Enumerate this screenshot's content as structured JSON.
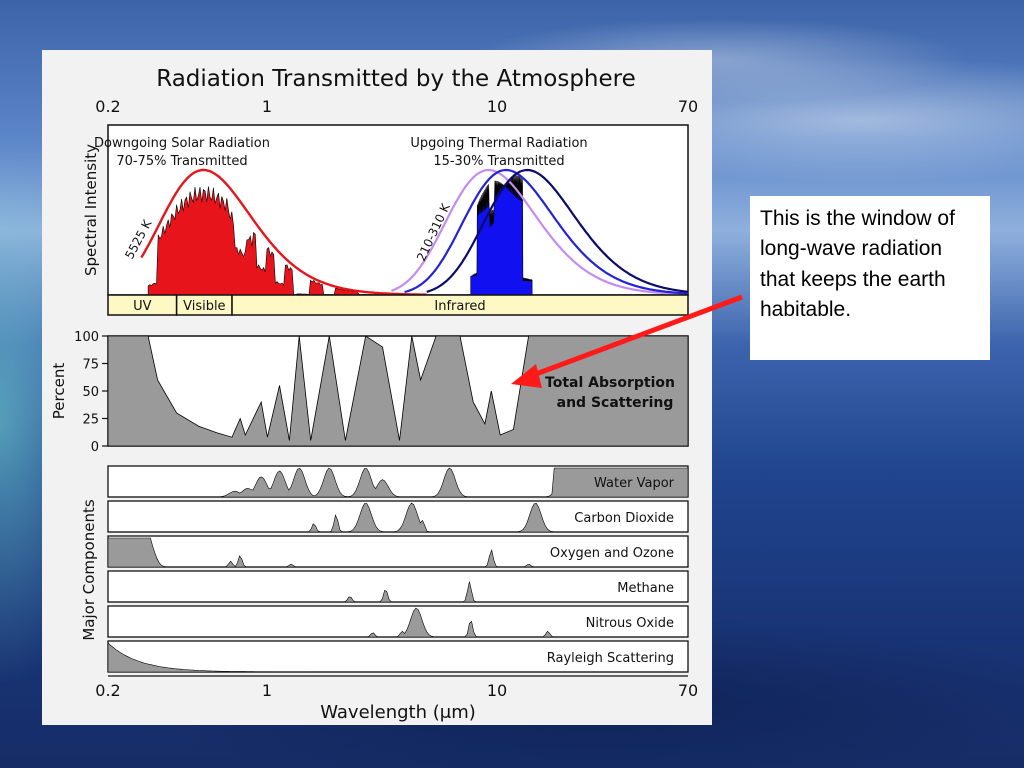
{
  "chart_data": {
    "type": "area",
    "title": "Radiation Transmitted by the Atmosphere",
    "xlabel": "Wavelength (μm)",
    "x_scale": "log",
    "xlim": [
      0.2,
      70
    ],
    "x_ticks": [
      "0.2",
      "1",
      "10",
      "70"
    ],
    "spectral_panel": {
      "ylabel": "Spectral Intensity",
      "solar_label_line1": "Downgoing Solar Radiation",
      "solar_label_line2": "70-75% Transmitted",
      "thermal_label_line1": "Upgoing Thermal Radiation",
      "thermal_label_line2": "15-30% Transmitted",
      "solar_temp_label": "5525 K",
      "thermal_temp_label": "210-310 K",
      "solar_color": "#e8141b",
      "thermal_color": "#1010f0",
      "thermal_curve_colors": [
        "#c58cf0",
        "#2323d8",
        "#0c0c6a"
      ],
      "bands": [
        {
          "label": "UV",
          "from": 0.2,
          "to": 0.4
        },
        {
          "label": "Visible",
          "from": 0.4,
          "to": 0.7
        },
        {
          "label": "Infrared",
          "from": 0.7,
          "to": 70
        }
      ],
      "band_color": "#fdf8c4"
    },
    "absorption_panel": {
      "ylabel": "Percent",
      "ylim": [
        0,
        100
      ],
      "y_ticks": [
        "100",
        "75",
        "50",
        "25",
        "0"
      ],
      "annotation_line1": "Total Absorption",
      "annotation_line2": "and Scattering",
      "fill_color": "#9a9a9a",
      "series": [
        {
          "x": 0.2,
          "y": 100
        },
        {
          "x": 0.3,
          "y": 100
        },
        {
          "x": 0.33,
          "y": 60
        },
        {
          "x": 0.4,
          "y": 30
        },
        {
          "x": 0.5,
          "y": 18
        },
        {
          "x": 0.6,
          "y": 12
        },
        {
          "x": 0.7,
          "y": 8
        },
        {
          "x": 0.76,
          "y": 25
        },
        {
          "x": 0.8,
          "y": 10
        },
        {
          "x": 0.94,
          "y": 40
        },
        {
          "x": 1.0,
          "y": 8
        },
        {
          "x": 1.13,
          "y": 55
        },
        {
          "x": 1.25,
          "y": 5
        },
        {
          "x": 1.38,
          "y": 100
        },
        {
          "x": 1.55,
          "y": 5
        },
        {
          "x": 1.87,
          "y": 100
        },
        {
          "x": 2.2,
          "y": 5
        },
        {
          "x": 2.7,
          "y": 100
        },
        {
          "x": 3.2,
          "y": 90
        },
        {
          "x": 3.8,
          "y": 5
        },
        {
          "x": 4.3,
          "y": 100
        },
        {
          "x": 4.7,
          "y": 60
        },
        {
          "x": 5.5,
          "y": 100
        },
        {
          "x": 7.0,
          "y": 100
        },
        {
          "x": 8.0,
          "y": 40
        },
        {
          "x": 9.0,
          "y": 20
        },
        {
          "x": 9.6,
          "y": 50
        },
        {
          "x": 10.5,
          "y": 10
        },
        {
          "x": 12.0,
          "y": 15
        },
        {
          "x": 14.0,
          "y": 100
        },
        {
          "x": 70,
          "y": 100
        }
      ]
    },
    "components_panel": {
      "ylabel": "Major Components",
      "components": [
        {
          "name": "Water Vapor",
          "peaks": [
            [
              0.72,
              0.2
            ],
            [
              0.82,
              0.3
            ],
            [
              0.94,
              0.7
            ],
            [
              1.13,
              0.9
            ],
            [
              1.38,
              1.0
            ],
            [
              1.87,
              1.0
            ],
            [
              2.7,
              1.0
            ],
            [
              3.2,
              0.6
            ],
            [
              6.3,
              1.0
            ],
            [
              20,
              1.0
            ]
          ]
        },
        {
          "name": "Carbon Dioxide",
          "peaks": [
            [
              1.6,
              0.3
            ],
            [
              2.0,
              0.6
            ],
            [
              2.7,
              1.0
            ],
            [
              4.3,
              1.0
            ],
            [
              4.8,
              0.4
            ],
            [
              15,
              1.0
            ]
          ]
        },
        {
          "name": "Oxygen and Ozone",
          "peaks": [
            [
              0.2,
              1.0
            ],
            [
              0.3,
              1.0
            ],
            [
              0.69,
              0.2
            ],
            [
              0.76,
              0.4
            ],
            [
              1.27,
              0.1
            ],
            [
              9.6,
              0.6
            ],
            [
              14,
              0.1
            ]
          ]
        },
        {
          "name": "Methane",
          "peaks": [
            [
              2.3,
              0.2
            ],
            [
              3.3,
              0.45
            ],
            [
              7.7,
              0.7
            ]
          ]
        },
        {
          "name": "Nitrous Oxide",
          "peaks": [
            [
              2.9,
              0.15
            ],
            [
              3.9,
              0.2
            ],
            [
              4.5,
              1.0
            ],
            [
              7.8,
              0.6
            ],
            [
              17,
              0.2
            ]
          ]
        },
        {
          "name": "Rayleigh Scattering",
          "peaks": [
            [
              0.2,
              1.0
            ],
            [
              0.5,
              0.2
            ]
          ]
        }
      ]
    }
  },
  "callout": {
    "text": "This is the window of long-wave radiation that keeps the earth habitable.",
    "arrow_color": "#ff1a1a"
  }
}
